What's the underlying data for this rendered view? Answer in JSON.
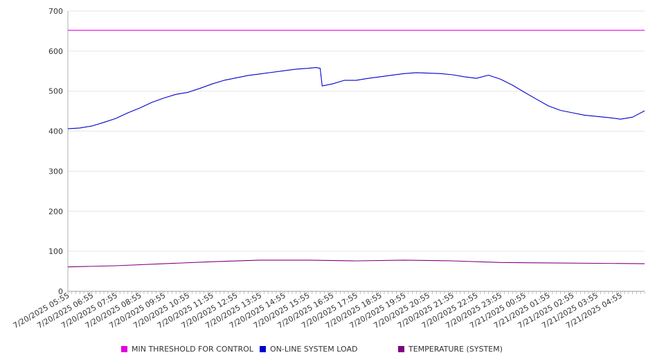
{
  "chart_data": {
    "type": "line",
    "title": "",
    "xlabel": "",
    "ylabel": "",
    "ylim": [
      0,
      700
    ],
    "y_ticks": [
      0,
      100,
      200,
      300,
      400,
      500,
      600,
      700
    ],
    "x_range": [
      "7/20/2025 05:55",
      "7/21/2025 05:55"
    ],
    "x_tick_labels": [
      "7/20/2025 05:55",
      "7/20/2025 06:55",
      "7/20/2025 07:55",
      "7/20/2025 08:55",
      "7/20/2025 09:55",
      "7/20/2025 10:55",
      "7/20/2025 11:55",
      "7/20/2025 12:55",
      "7/20/2025 13:55",
      "7/20/2025 14:55",
      "7/20/2025 15:55",
      "7/20/2025 16:55",
      "7/20/2025 17:55",
      "7/20/2025 18:55",
      "7/20/2025 19:55",
      "7/20/2025 20:55",
      "7/20/2025 21:55",
      "7/20/2025 22:55",
      "7/20/2025 23:55",
      "7/21/2025 00:55",
      "7/21/2025 01:55",
      "7/21/2025 02:55",
      "7/21/2025 03:55",
      "7/21/2025 04:55"
    ],
    "grid": true,
    "legend_position": "bottom",
    "series": [
      {
        "name": "MIN THRESHOLD FOR CONTROL",
        "color": "#e000e0",
        "points": [
          [
            "7/20/2025 05:55",
            652
          ],
          [
            "7/21/2025 05:55",
            652
          ]
        ]
      },
      {
        "name": "ON-LINE SYSTEM LOAD",
        "color": "#0000cc",
        "points": [
          [
            "7/20/2025 05:55",
            406
          ],
          [
            "7/20/2025 06:25",
            408
          ],
          [
            "7/20/2025 06:55",
            413
          ],
          [
            "7/20/2025 07:25",
            422
          ],
          [
            "7/20/2025 07:55",
            432
          ],
          [
            "7/20/2025 08:25",
            446
          ],
          [
            "7/20/2025 08:55",
            458
          ],
          [
            "7/20/2025 09:25",
            472
          ],
          [
            "7/20/2025 09:55",
            483
          ],
          [
            "7/20/2025 10:25",
            492
          ],
          [
            "7/20/2025 10:55",
            497
          ],
          [
            "7/20/2025 11:25",
            507
          ],
          [
            "7/20/2025 11:55",
            518
          ],
          [
            "7/20/2025 12:25",
            527
          ],
          [
            "7/20/2025 12:55",
            533
          ],
          [
            "7/20/2025 13:25",
            539
          ],
          [
            "7/20/2025 13:55",
            543
          ],
          [
            "7/20/2025 14:25",
            547
          ],
          [
            "7/20/2025 14:55",
            551
          ],
          [
            "7/20/2025 15:25",
            555
          ],
          [
            "7/20/2025 15:55",
            557
          ],
          [
            "7/20/2025 16:15",
            559
          ],
          [
            "7/20/2025 16:25",
            557
          ],
          [
            "7/20/2025 16:30",
            513
          ],
          [
            "7/20/2025 16:55",
            518
          ],
          [
            "7/20/2025 17:25",
            527
          ],
          [
            "7/20/2025 17:55",
            527
          ],
          [
            "7/20/2025 18:25",
            532
          ],
          [
            "7/20/2025 18:55",
            536
          ],
          [
            "7/20/2025 19:25",
            540
          ],
          [
            "7/20/2025 19:55",
            544
          ],
          [
            "7/20/2025 20:25",
            546
          ],
          [
            "7/20/2025 20:55",
            545
          ],
          [
            "7/20/2025 21:25",
            544
          ],
          [
            "7/20/2025 21:55",
            541
          ],
          [
            "7/20/2025 22:25",
            536
          ],
          [
            "7/20/2025 22:55",
            532
          ],
          [
            "7/20/2025 23:25",
            540
          ],
          [
            "7/20/2025 23:55",
            530
          ],
          [
            "7/21/2025 00:25",
            515
          ],
          [
            "7/21/2025 00:55",
            497
          ],
          [
            "7/21/2025 01:25",
            480
          ],
          [
            "7/21/2025 01:55",
            463
          ],
          [
            "7/21/2025 02:25",
            452
          ],
          [
            "7/21/2025 02:55",
            446
          ],
          [
            "7/21/2025 03:25",
            440
          ],
          [
            "7/21/2025 03:55",
            437
          ],
          [
            "7/21/2025 04:25",
            434
          ],
          [
            "7/21/2025 04:55",
            430
          ],
          [
            "7/21/2025 05:25",
            435
          ],
          [
            "7/21/2025 05:55",
            451
          ]
        ]
      },
      {
        "name": "TEMPERATURE (SYSTEM)",
        "color": "#800080",
        "points": [
          [
            "7/20/2025 05:55",
            61
          ],
          [
            "7/20/2025 07:55",
            64
          ],
          [
            "7/20/2025 09:55",
            69
          ],
          [
            "7/20/2025 11:55",
            74
          ],
          [
            "7/20/2025 13:55",
            78
          ],
          [
            "7/20/2025 15:55",
            78
          ],
          [
            "7/20/2025 17:55",
            76
          ],
          [
            "7/20/2025 19:55",
            78
          ],
          [
            "7/20/2025 21:55",
            76
          ],
          [
            "7/20/2025 23:55",
            72
          ],
          [
            "7/21/2025 01:55",
            71
          ],
          [
            "7/21/2025 03:55",
            70
          ],
          [
            "7/21/2025 05:55",
            69
          ]
        ]
      }
    ]
  }
}
